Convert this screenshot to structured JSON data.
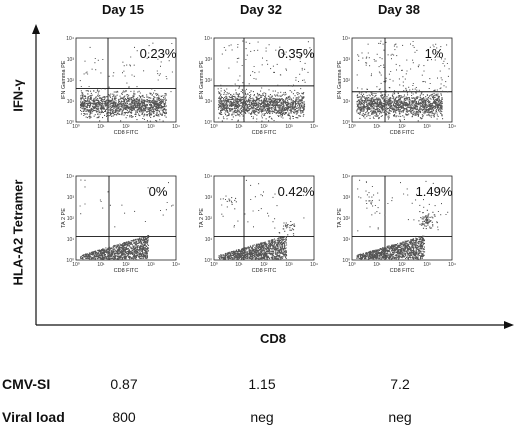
{
  "columns": [
    "Day 15",
    "Day 32",
    "Day 38"
  ],
  "row_labels": [
    "IFN-γ",
    "HLA-A2 Tetramer"
  ],
  "x_axis_title": "CD8",
  "chart_data": [
    {
      "type": "scatter",
      "row": 0,
      "col": 0,
      "xlabel": "CD8 FITC",
      "ylabel": "IFN Gamma PE",
      "quadrant_upper_right_pct": "0.23%",
      "xlim": [
        1,
        10000
      ],
      "ylim": [
        1,
        10000
      ],
      "log_scale": true
    },
    {
      "type": "scatter",
      "row": 0,
      "col": 1,
      "xlabel": "CD8 FITC",
      "ylabel": "IFN Gamma PE",
      "quadrant_upper_right_pct": "0.35%",
      "xlim": [
        1,
        10000
      ],
      "ylim": [
        1,
        10000
      ],
      "log_scale": true
    },
    {
      "type": "scatter",
      "row": 0,
      "col": 2,
      "xlabel": "CD8 FITC",
      "ylabel": "IFN Gamma PE",
      "quadrant_upper_right_pct": "1%",
      "xlim": [
        1,
        10000
      ],
      "ylim": [
        1,
        10000
      ],
      "log_scale": true
    },
    {
      "type": "scatter",
      "row": 1,
      "col": 0,
      "xlabel": "CD8 FITC",
      "ylabel": "TA 2 PE",
      "quadrant_upper_right_pct": "0%",
      "xlim": [
        1,
        10000
      ],
      "ylim": [
        1,
        10000
      ],
      "log_scale": true
    },
    {
      "type": "scatter",
      "row": 1,
      "col": 1,
      "xlabel": "CD8 FITC",
      "ylabel": "TA 2 PE",
      "quadrant_upper_right_pct": "0.42%",
      "xlim": [
        1,
        10000
      ],
      "ylim": [
        1,
        10000
      ],
      "log_scale": true
    },
    {
      "type": "scatter",
      "row": 1,
      "col": 2,
      "xlabel": "CD8 FITC",
      "ylabel": "TA 2 PE",
      "quadrant_upper_right_pct": "1.49%",
      "xlim": [
        1,
        10000
      ],
      "ylim": [
        1,
        10000
      ],
      "log_scale": true
    }
  ],
  "tick_labels": [
    "10⁰",
    "10¹",
    "10²",
    "10³",
    "10⁴"
  ],
  "bottom_rows": [
    {
      "label": "CMV-SI",
      "values": [
        "0.87",
        "1.15",
        "7.2"
      ]
    },
    {
      "label": "Viral load",
      "values": [
        "800",
        "neg",
        "neg"
      ]
    }
  ]
}
